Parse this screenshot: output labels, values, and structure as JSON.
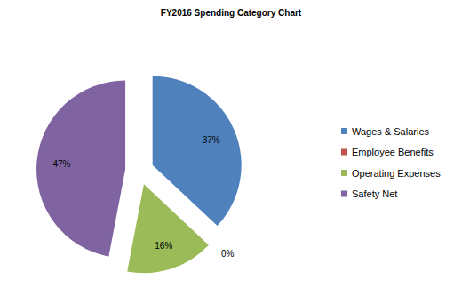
{
  "chart_data": {
    "type": "pie",
    "title": "FY2016 Spending Category Chart",
    "categories": [
      "Wages & Salaries",
      "Employee Benefits",
      "Operating Expenses",
      "Safety Net"
    ],
    "values": [
      37,
      0,
      16,
      47
    ],
    "value_labels": [
      "37%",
      "0%",
      "16%",
      "47%"
    ],
    "colors": [
      "#4f81bd",
      "#c0504d",
      "#9bbb59",
      "#8064a2"
    ],
    "data_labels": true,
    "legend": "right"
  }
}
